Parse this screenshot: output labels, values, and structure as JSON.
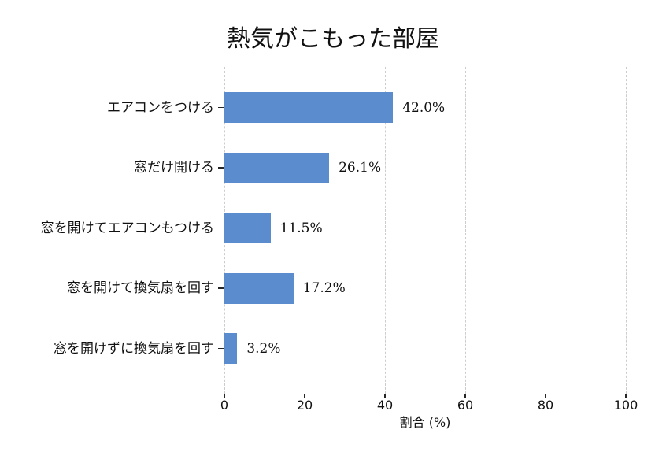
{
  "chart_data": {
    "type": "bar",
    "orientation": "horizontal",
    "title": "熱気がこもった部屋",
    "xlabel": "割合 (%)",
    "categories": [
      "エアコンをつける",
      "窓だけ開ける",
      "窓を開けてエアコンもつける",
      "窓を開けて換気扇を回す",
      "窓を開けずに換気扇を回す"
    ],
    "values": [
      42.0,
      26.1,
      11.5,
      17.2,
      3.2
    ],
    "value_labels": [
      "42.0%",
      "26.1%",
      "11.5%",
      "17.2%",
      "3.2%"
    ],
    "xlim": [
      0,
      100
    ],
    "x_ticks": [
      0,
      20,
      40,
      60,
      80,
      100
    ],
    "x_tick_labels": [
      "0",
      "20",
      "40",
      "60",
      "80",
      "100"
    ],
    "grid": "vertical-dashed",
    "legend": "none",
    "bar_color": "#5b8dce",
    "grid_color": "#cccccc",
    "tick_color": "#262626",
    "text_color": "#111111"
  }
}
